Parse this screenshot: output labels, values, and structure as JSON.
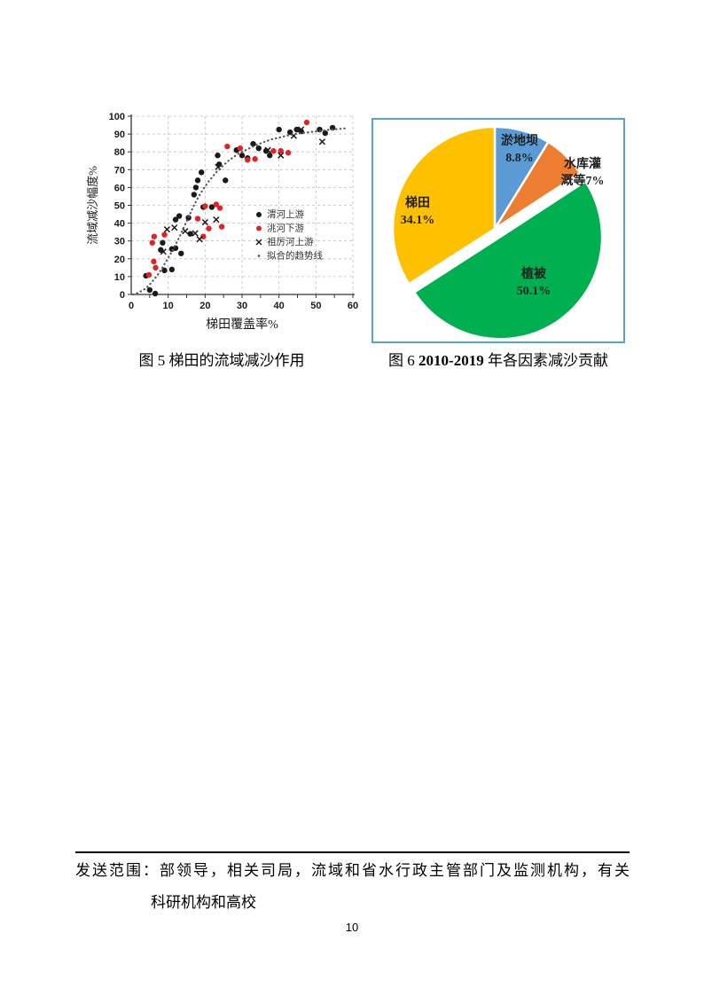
{
  "page": {
    "number": "10"
  },
  "figures": {
    "fig5": {
      "caption": "图 5 梯田的流域减沙作用"
    },
    "fig6": {
      "caption_prefix": "图 6",
      "caption_bold": "2010-2019",
      "caption_suffix": "年各因素减沙贡献"
    }
  },
  "footer": {
    "line1": "发送范围：部领导，相关司局，流域和省水行政主管部门及监测机构，有关",
    "line2": "科研机构和高校"
  },
  "chart_data": [
    {
      "type": "scatter",
      "title": "",
      "xlabel": "梯田覆盖率%",
      "ylabel": "流域减沙幅度%",
      "xlim": [
        0,
        60
      ],
      "ylim": [
        0,
        100
      ],
      "xticks": [
        0,
        10,
        20,
        30,
        40,
        50,
        60
      ],
      "yticks": [
        0,
        10,
        20,
        30,
        40,
        50,
        60,
        70,
        80,
        90,
        100
      ],
      "grid": true,
      "legend_position": "inside-right-middle",
      "axis_color": "#333333",
      "grid_color": "#bfbfbf",
      "series": [
        {
          "name": "渭河上游",
          "marker": "circle",
          "color": "#1a1a1a",
          "points": [
            [
              4,
              10.5
            ],
            [
              5,
              2.5
            ],
            [
              6.5,
              0.5
            ],
            [
              8,
              25
            ],
            [
              8.5,
              29
            ],
            [
              9,
              13.5
            ],
            [
              11,
              14
            ],
            [
              11,
              25.5
            ],
            [
              12,
              26
            ],
            [
              12,
              42
            ],
            [
              13,
              44
            ],
            [
              13.5,
              23
            ],
            [
              15.5,
              43
            ],
            [
              16,
              34
            ],
            [
              17,
              56
            ],
            [
              17.5,
              60
            ],
            [
              18,
              64
            ],
            [
              19,
              68.5
            ],
            [
              19.5,
              49
            ],
            [
              21.8,
              49
            ],
            [
              23.4,
              78
            ],
            [
              23.8,
              73
            ],
            [
              25.5,
              64
            ],
            [
              28.5,
              81
            ],
            [
              30,
              78
            ],
            [
              31.5,
              76.5
            ],
            [
              33,
              84.5
            ],
            [
              34.5,
              82
            ],
            [
              36.5,
              80.5
            ],
            [
              37.5,
              78
            ],
            [
              40,
              92.5
            ],
            [
              43,
              91
            ],
            [
              44.8,
              92.5
            ],
            [
              46,
              91.5
            ],
            [
              51,
              92.5
            ],
            [
              52.5,
              90.5
            ],
            [
              54.5,
              93.5
            ]
          ]
        },
        {
          "name": "洮河下游",
          "marker": "circle",
          "color": "#e02424",
          "points": [
            [
              4.8,
              11
            ],
            [
              5.7,
              29
            ],
            [
              6.1,
              18.5
            ],
            [
              6.2,
              32.5
            ],
            [
              6.6,
              15
            ],
            [
              9,
              33.5
            ],
            [
              18,
              42.5
            ],
            [
              19.5,
              32.5
            ],
            [
              20,
              49.5
            ],
            [
              21,
              37
            ],
            [
              23,
              50.5
            ],
            [
              24,
              48.5
            ],
            [
              24.5,
              38
            ],
            [
              26,
              83
            ],
            [
              29.5,
              82
            ],
            [
              31.5,
              75.5
            ],
            [
              33.5,
              76
            ],
            [
              38.5,
              80.5
            ],
            [
              40.5,
              80.5
            ],
            [
              42.5,
              79.5
            ],
            [
              47.5,
              96.5
            ]
          ]
        },
        {
          "name": "祖厉河上游",
          "marker": "x",
          "color": "#1a1a1a",
          "points": [
            [
              8.7,
              24
            ],
            [
              9.7,
              36.5
            ],
            [
              11.7,
              37.5
            ],
            [
              14.6,
              35.5
            ],
            [
              17.3,
              34.3
            ],
            [
              18.5,
              31
            ],
            [
              20,
              40.5
            ],
            [
              23,
              42
            ],
            [
              23.5,
              71.5
            ],
            [
              37,
              81
            ],
            [
              40.5,
              78
            ],
            [
              44,
              89
            ],
            [
              46,
              92.5
            ],
            [
              51.7,
              85.7
            ]
          ]
        },
        {
          "name": "拟合的趋势线",
          "marker": "dotted-line",
          "color": "#595959",
          "points": [
            [
              0.5,
              0
            ],
            [
              2,
              1
            ],
            [
              4,
              3.5
            ],
            [
              5,
              5.5
            ],
            [
              6,
              8
            ],
            [
              7,
              10.5
            ],
            [
              8,
              13.5
            ],
            [
              9,
              17
            ],
            [
              10,
              20.5
            ],
            [
              11,
              24
            ],
            [
              12,
              28
            ],
            [
              13,
              32
            ],
            [
              14,
              36.5
            ],
            [
              15,
              41
            ],
            [
              16,
              45.5
            ],
            [
              17,
              50
            ],
            [
              18,
              54
            ],
            [
              19,
              57.5
            ],
            [
              20,
              60.5
            ],
            [
              21,
              63.5
            ],
            [
              22,
              66
            ],
            [
              23,
              68.5
            ],
            [
              24,
              70.5
            ],
            [
              25,
              72.5
            ],
            [
              26,
              74.5
            ],
            [
              27,
              76
            ],
            [
              28,
              77.5
            ],
            [
              29,
              79
            ],
            [
              30,
              80
            ],
            [
              32,
              82
            ],
            [
              34,
              84
            ],
            [
              36,
              85.5
            ],
            [
              38,
              87
            ],
            [
              40,
              88
            ],
            [
              42,
              89
            ],
            [
              44,
              89.8
            ],
            [
              46,
              90.5
            ],
            [
              48,
              91
            ],
            [
              50,
              91.5
            ],
            [
              52,
              92
            ],
            [
              54,
              92.5
            ],
            [
              56,
              92.8
            ],
            [
              58,
              93.2
            ]
          ]
        }
      ]
    },
    {
      "type": "pie",
      "title": "",
      "start_angle_deg_from_12_clockwise": 0,
      "frame_border_color": "#54a2da",
      "label_color": "#1f1f1f",
      "slices": [
        {
          "label": "淤地坝",
          "value": 8.8,
          "value_label": "8.8%",
          "color": "#5b9bd5",
          "exploded": false,
          "label_lines": [
            "淤地坝",
            "8.8%"
          ],
          "label_pos": [
            165,
            28
          ]
        },
        {
          "label": "水库灌溉等",
          "value": 7,
          "value_label": "7%",
          "color": "#ed7d31",
          "exploded": false,
          "label_lines": [
            "水库灌",
            "溉等7%"
          ],
          "label_pos": [
            236,
            54
          ]
        },
        {
          "label": "植被",
          "value": 50.1,
          "value_label": "50.1%",
          "color": "#00b050",
          "exploded": true,
          "label_lines": [
            "植被",
            "50.1%"
          ],
          "label_pos": [
            181,
            178
          ]
        },
        {
          "label": "梯田",
          "value": 34.1,
          "value_label": "34.1%",
          "color": "#ffc000",
          "exploded": false,
          "label_lines": [
            "梯田",
            "34.1%"
          ],
          "label_pos": [
            50,
            98
          ]
        }
      ]
    }
  ]
}
